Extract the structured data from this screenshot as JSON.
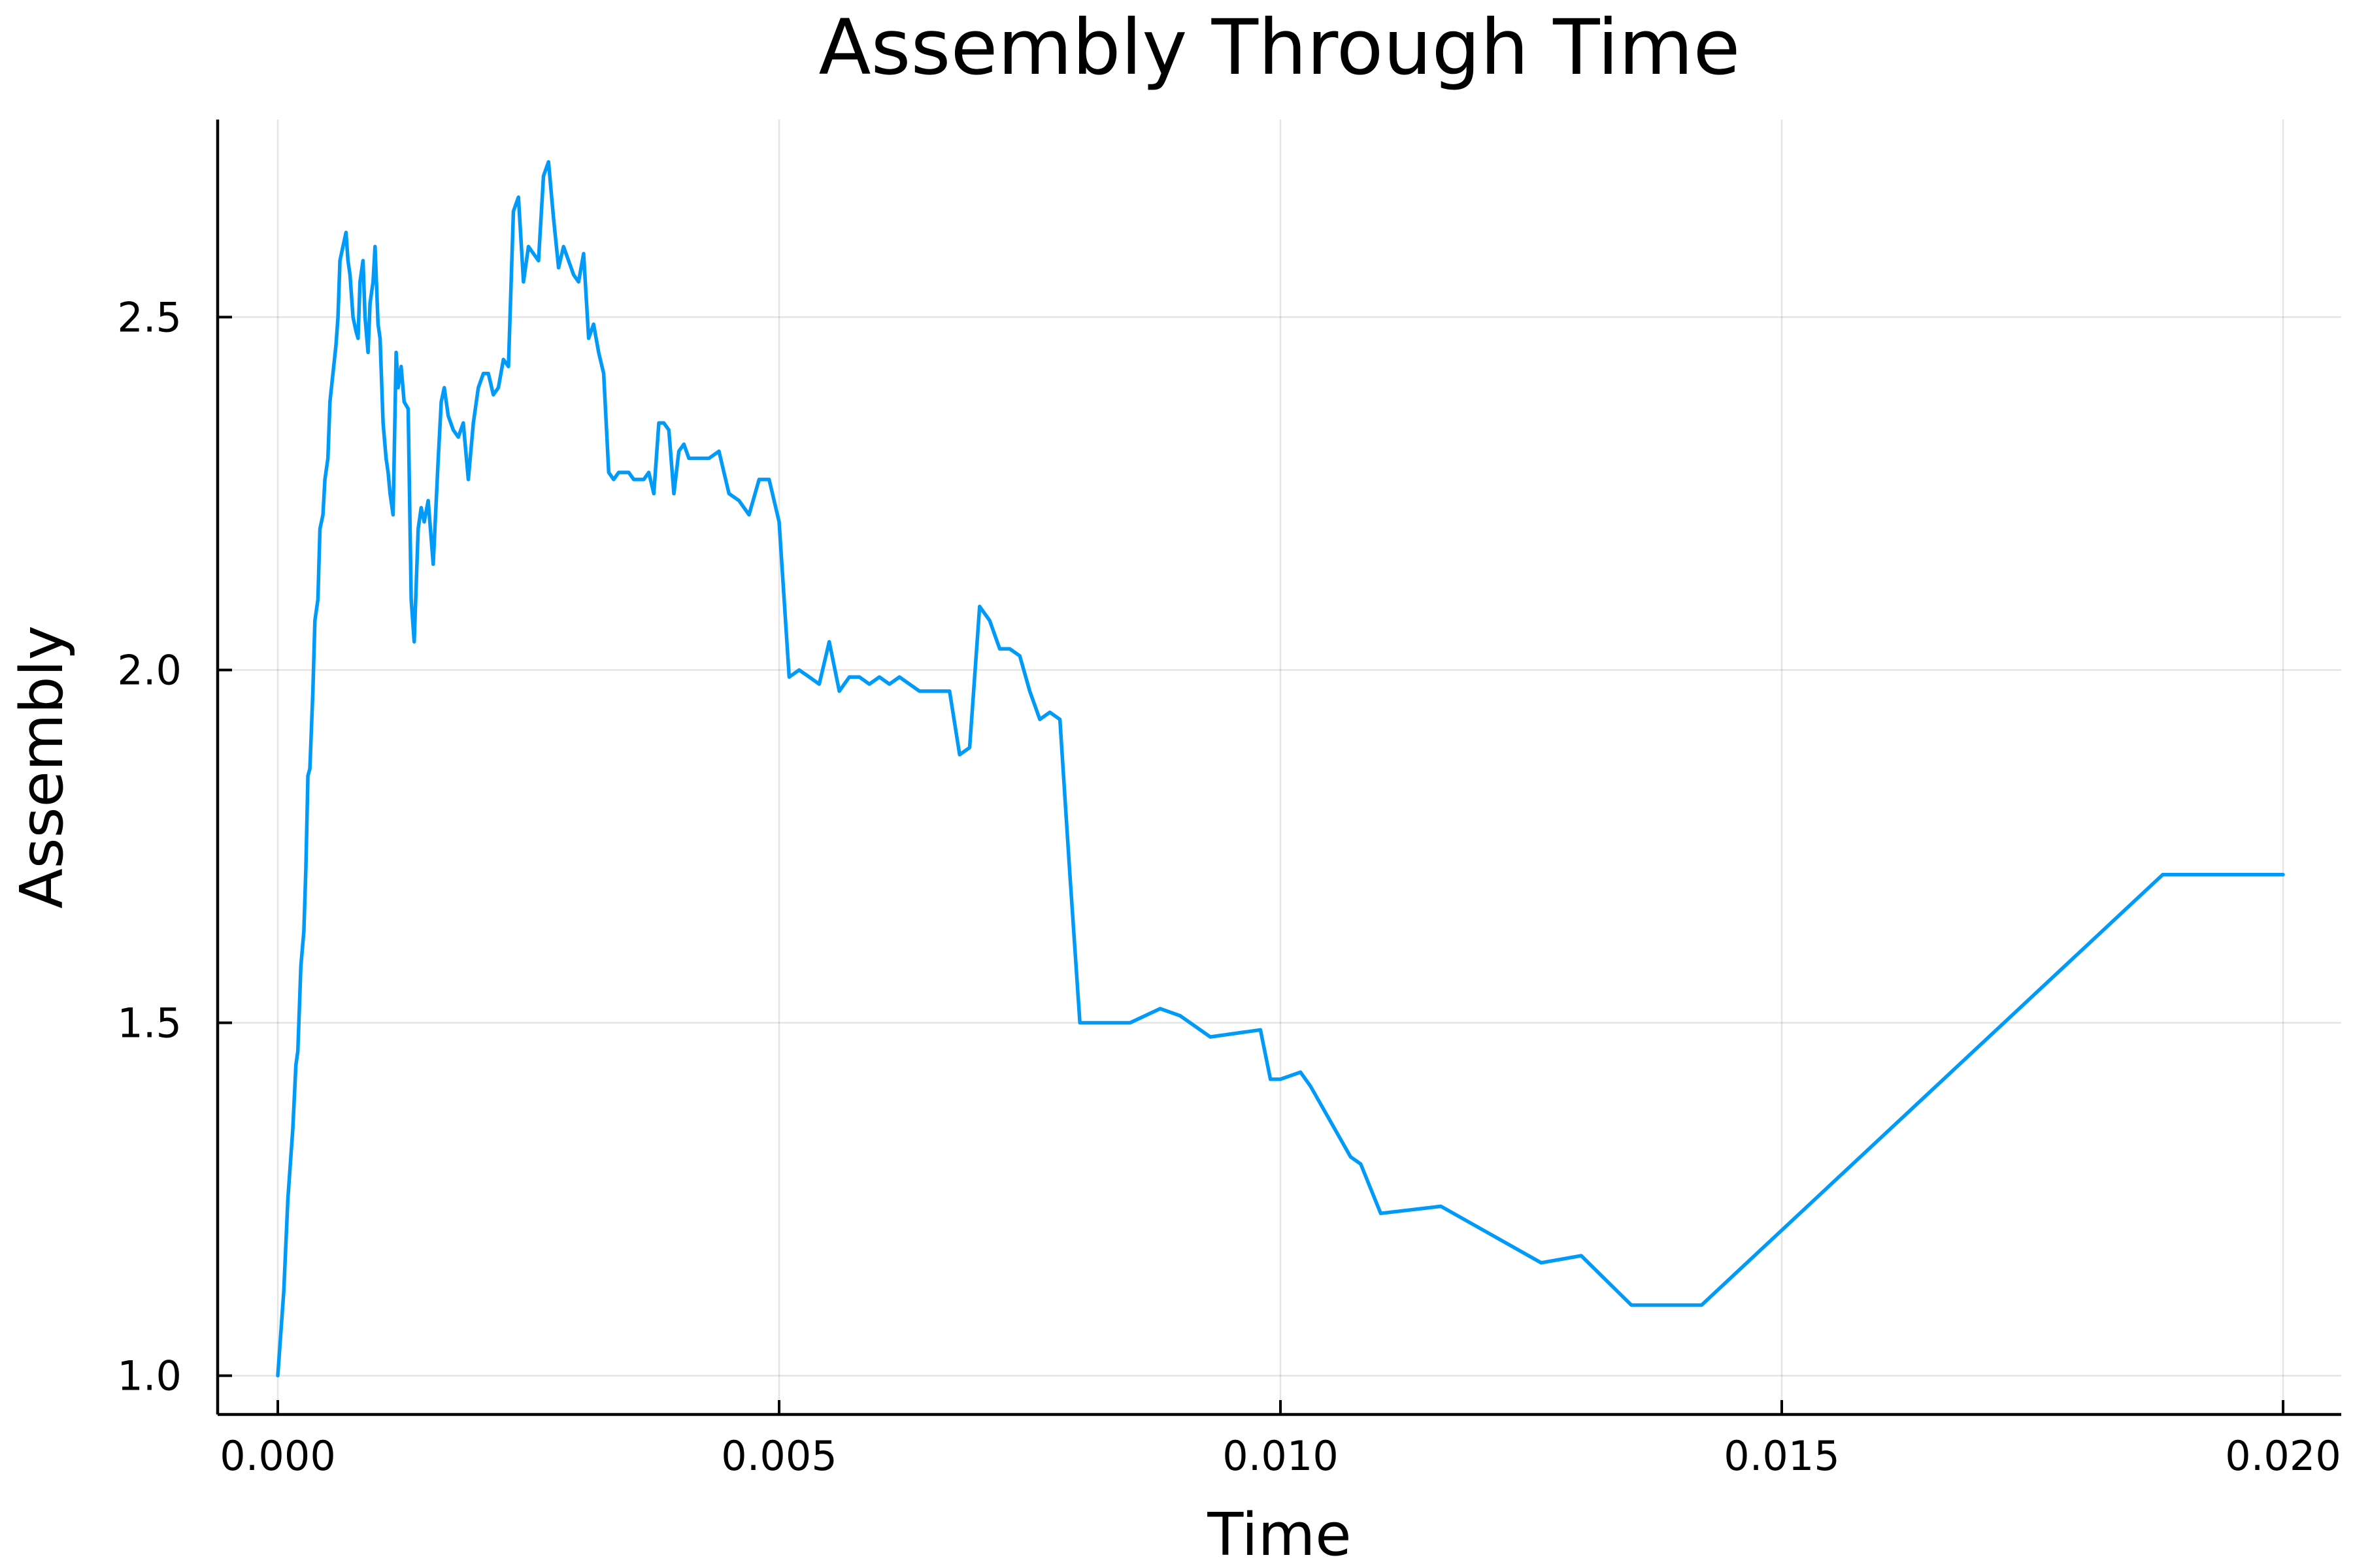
{
  "chart_data": {
    "type": "line",
    "title": "Assembly Through Time",
    "xlabel": "Time",
    "ylabel": "Assembly",
    "xlim": [
      -0.0006,
      0.02058
    ],
    "ylim": [
      0.945,
      2.78
    ],
    "xticks": [
      0.0,
      0.005,
      0.01,
      0.015,
      0.02
    ],
    "xtick_labels": [
      "0.000",
      "0.005",
      "0.010",
      "0.015",
      "0.020"
    ],
    "yticks": [
      1.0,
      1.5,
      2.0,
      2.5
    ],
    "ytick_labels": [
      "1.0",
      "1.5",
      "2.0",
      "2.5"
    ],
    "grid": true,
    "legend": false,
    "colors": {
      "series": "#009af9",
      "grid": "#e6e6e6",
      "axis": "#000000"
    },
    "series": [
      {
        "color": "#009af9",
        "x": [
          0.0,
          3e-05,
          6e-05,
          0.0001,
          0.00015,
          0.00018,
          0.0002,
          0.00023,
          0.00026,
          0.00028,
          0.0003,
          0.00032,
          0.00035,
          0.00037,
          0.0004,
          0.00042,
          0.00045,
          0.00047,
          0.0005,
          0.00052,
          0.00055,
          0.00058,
          0.0006,
          0.00062,
          0.00065,
          0.00068,
          0.0007,
          0.00072,
          0.00075,
          0.00078,
          0.0008,
          0.00082,
          0.00085,
          0.00087,
          0.0009,
          0.00092,
          0.00095,
          0.00097,
          0.001,
          0.00102,
          0.00105,
          0.00108,
          0.0011,
          0.00112,
          0.00115,
          0.00118,
          0.0012,
          0.00123,
          0.00126,
          0.0013,
          0.00133,
          0.00136,
          0.0014,
          0.00143,
          0.00146,
          0.0015,
          0.00155,
          0.0016,
          0.00163,
          0.00166,
          0.0017,
          0.00175,
          0.0018,
          0.00185,
          0.0019,
          0.00195,
          0.002,
          0.00205,
          0.0021,
          0.00215,
          0.0022,
          0.00225,
          0.0023,
          0.00235,
          0.0024,
          0.00245,
          0.0025,
          0.00255,
          0.0026,
          0.00265,
          0.0027,
          0.00275,
          0.0028,
          0.00285,
          0.0029,
          0.00295,
          0.003,
          0.00305,
          0.0031,
          0.00315,
          0.0032,
          0.00325,
          0.0033,
          0.00335,
          0.0034,
          0.00345,
          0.0035,
          0.00355,
          0.0036,
          0.00365,
          0.0037,
          0.00375,
          0.0038,
          0.00385,
          0.0039,
          0.00395,
          0.004,
          0.00405,
          0.0041,
          0.0042,
          0.0043,
          0.0044,
          0.0045,
          0.0046,
          0.0047,
          0.0048,
          0.0049,
          0.005,
          0.0051,
          0.0052,
          0.0053,
          0.0054,
          0.0055,
          0.0056,
          0.0057,
          0.0058,
          0.0059,
          0.006,
          0.0061,
          0.0062,
          0.0063,
          0.0064,
          0.0065,
          0.0066,
          0.0067,
          0.0068,
          0.0069,
          0.007,
          0.0071,
          0.0072,
          0.0073,
          0.0074,
          0.0075,
          0.0076,
          0.0077,
          0.0078,
          0.0079,
          0.008,
          0.0085,
          0.0088,
          0.009,
          0.0093,
          0.0098,
          0.0099,
          0.01,
          0.0102,
          0.0103,
          0.0107,
          0.0108,
          0.011,
          0.0116,
          0.0126,
          0.013,
          0.0135,
          0.0142,
          0.0188,
          0.02
        ],
        "y": [
          1.0,
          1.06,
          1.12,
          1.25,
          1.35,
          1.44,
          1.46,
          1.58,
          1.63,
          1.72,
          1.85,
          1.86,
          1.97,
          2.07,
          2.1,
          2.2,
          2.22,
          2.27,
          2.3,
          2.38,
          2.42,
          2.46,
          2.5,
          2.58,
          2.6,
          2.62,
          2.58,
          2.56,
          2.5,
          2.48,
          2.47,
          2.55,
          2.58,
          2.5,
          2.45,
          2.52,
          2.55,
          2.6,
          2.49,
          2.47,
          2.35,
          2.3,
          2.28,
          2.25,
          2.22,
          2.45,
          2.4,
          2.43,
          2.38,
          2.37,
          2.1,
          2.04,
          2.2,
          2.23,
          2.21,
          2.24,
          2.15,
          2.3,
          2.38,
          2.4,
          2.36,
          2.34,
          2.33,
          2.35,
          2.27,
          2.35,
          2.4,
          2.42,
          2.42,
          2.39,
          2.4,
          2.44,
          2.43,
          2.65,
          2.67,
          2.55,
          2.6,
          2.59,
          2.58,
          2.7,
          2.72,
          2.64,
          2.57,
          2.6,
          2.58,
          2.56,
          2.55,
          2.59,
          2.47,
          2.49,
          2.45,
          2.42,
          2.28,
          2.27,
          2.28,
          2.28,
          2.28,
          2.27,
          2.27,
          2.27,
          2.28,
          2.25,
          2.35,
          2.35,
          2.34,
          2.25,
          2.31,
          2.32,
          2.3,
          2.3,
          2.3,
          2.31,
          2.25,
          2.24,
          2.22,
          2.27,
          2.27,
          2.21,
          1.99,
          2.0,
          1.99,
          1.98,
          2.04,
          1.97,
          1.99,
          1.99,
          1.98,
          1.99,
          1.98,
          1.99,
          1.98,
          1.97,
          1.97,
          1.97,
          1.97,
          1.88,
          1.89,
          2.09,
          2.07,
          2.03,
          2.03,
          2.02,
          1.97,
          1.93,
          1.94,
          1.93,
          1.71,
          1.5,
          1.5,
          1.52,
          1.51,
          1.48,
          1.49,
          1.42,
          1.42,
          1.43,
          1.41,
          1.31,
          1.3,
          1.23,
          1.24,
          1.16,
          1.17,
          1.1,
          1.1,
          1.71,
          1.71
        ]
      }
    ]
  }
}
